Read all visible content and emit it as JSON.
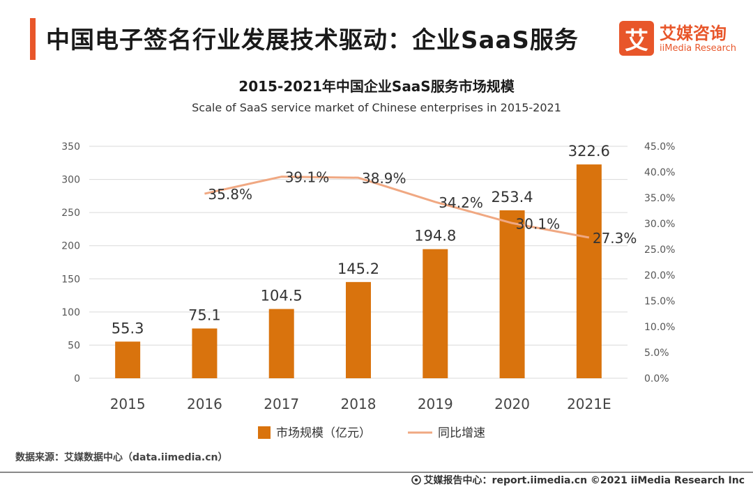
{
  "header": {
    "title": "中国电子签名行业发展技术驱动：企业SaaS服务",
    "logo_mark": "艾",
    "logo_cn": "艾媒咨询",
    "logo_en": "iiMedia Research"
  },
  "colors": {
    "accent": "#e8562a",
    "bar": "#d9730d",
    "line": "#f0a882"
  },
  "chart_data": {
    "type": "bar",
    "title": "2015-2021年中国企业SaaS服务市场规模",
    "subtitle": "Scale of SaaS service market of Chinese enterprises in 2015-2021",
    "categories": [
      "2015",
      "2016",
      "2017",
      "2018",
      "2019",
      "2020",
      "2021E"
    ],
    "series": [
      {
        "name": "市场规模（亿元）",
        "type": "bar",
        "axis": "left",
        "values": [
          55.3,
          75.1,
          104.5,
          145.2,
          194.8,
          253.4,
          322.6
        ],
        "labels": [
          "55.3",
          "75.1",
          "104.5",
          "145.2",
          "194.8",
          "253.4",
          "322.6"
        ]
      },
      {
        "name": "同比增速",
        "type": "line",
        "axis": "right",
        "values": [
          null,
          35.8,
          39.1,
          38.9,
          34.2,
          30.1,
          27.3
        ],
        "labels": [
          "",
          "35.8%",
          "39.1%",
          "38.9%",
          "34.2%",
          "30.1%",
          "27.3%"
        ]
      }
    ],
    "y_left": {
      "min": 0,
      "max": 350,
      "step": 50,
      "ticks": [
        "0",
        "50",
        "100",
        "150",
        "200",
        "250",
        "300",
        "350"
      ]
    },
    "y_right": {
      "min": 0,
      "max": 45,
      "step": 5,
      "ticks": [
        "0.0%",
        "5.0%",
        "10.0%",
        "15.0%",
        "20.0%",
        "25.0%",
        "30.0%",
        "35.0%",
        "40.0%",
        "45.0%"
      ]
    },
    "grid": true,
    "legend": "bottom"
  },
  "footer": {
    "source": "数据来源：艾媒数据中心（data.iimedia.cn）",
    "right": "艾媒报告中心：report.iimedia.cn  ©2021  iiMedia Research  Inc"
  }
}
